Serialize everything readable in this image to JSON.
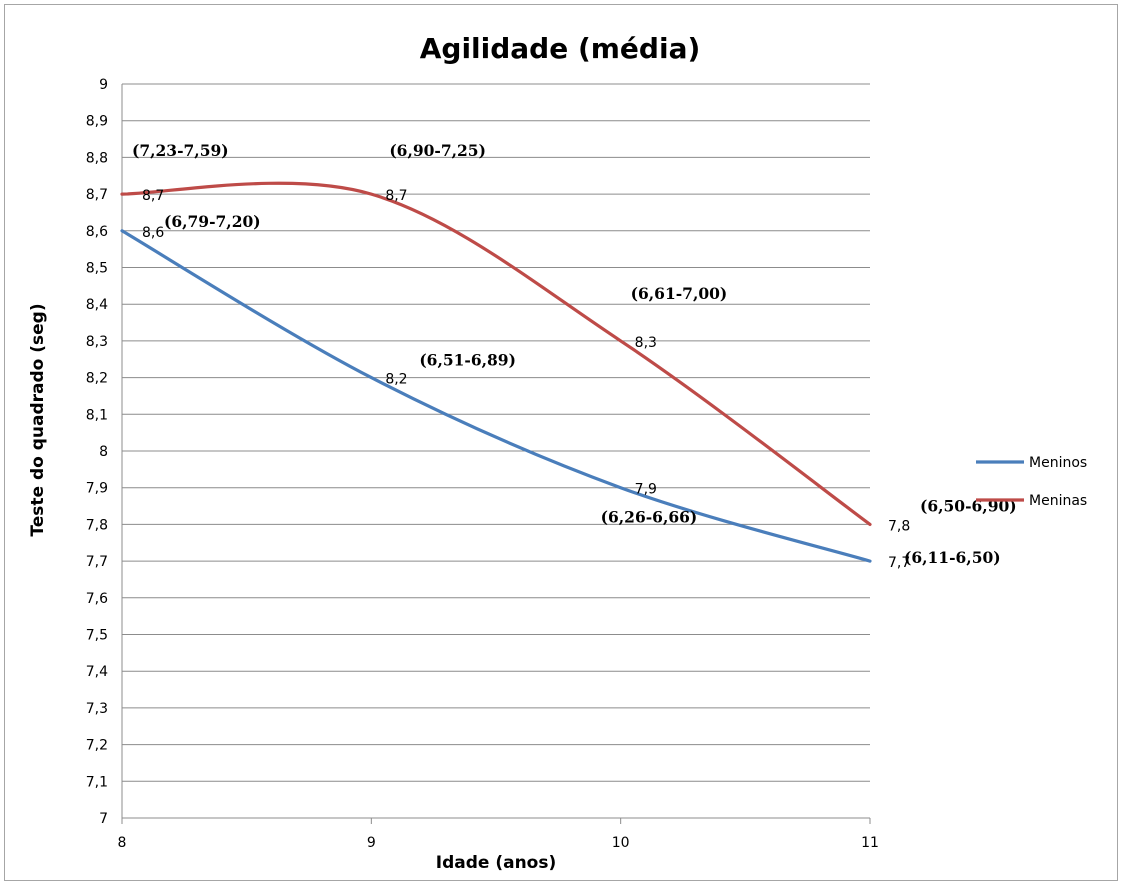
{
  "chart_data": {
    "type": "line",
    "title": "Agilidade (média)",
    "xlabel": "Idade (anos)",
    "ylabel": "Teste do quadrado (seg)",
    "x": [
      8,
      9,
      10,
      11
    ],
    "x_ticks": [
      "8",
      "9",
      "10",
      "11"
    ],
    "ylim": [
      7,
      9
    ],
    "y_ticks": [
      "7",
      "7,1",
      "7,2",
      "7,3",
      "7,4",
      "7,5",
      "7,6",
      "7,7",
      "7,8",
      "7,9",
      "8",
      "8,1",
      "8,2",
      "8,3",
      "8,4",
      "8,5",
      "8,6",
      "8,7",
      "8,8",
      "8,9",
      "9"
    ],
    "grid": true,
    "legend_position": "right",
    "series": [
      {
        "name": "Meninos",
        "color": "#4a7ebb",
        "values": [
          8.6,
          8.2,
          7.9,
          7.7
        ],
        "value_labels": [
          "8,6",
          "8,2",
          "7,9",
          "7,7"
        ],
        "intervals": [
          "(6,79-7,20)",
          "(6,51-6,89)",
          "(6,26-6,66)",
          "(6,11-6,50)"
        ]
      },
      {
        "name": "Meninas",
        "color": "#be4b48",
        "values": [
          8.7,
          8.7,
          8.3,
          7.8
        ],
        "value_labels": [
          "8,7",
          "8,7",
          "8,3",
          "7,8"
        ],
        "intervals": [
          "(7,23-7,59)",
          "(6,90-7,25)",
          "(6,61-7,00)",
          "(6,50-6,90)"
        ]
      }
    ]
  }
}
